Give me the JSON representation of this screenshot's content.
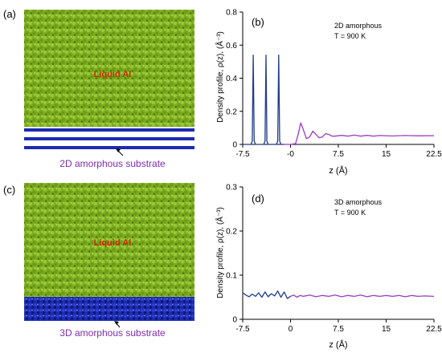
{
  "panels": {
    "a": {
      "label": "(a)",
      "liquid_label": "Liquid Al",
      "substrate_label": "2D amorphous substrate"
    },
    "c": {
      "label": "(c)",
      "liquid_label": "Liquid Al",
      "substrate_label": "3D amorphous substrate"
    }
  },
  "colors": {
    "liquid": "#7cae1f",
    "liquid_dark": "#4e7d0e",
    "substrate": "#1c2bb0",
    "substrate_dark": "#0b1570",
    "label_text": "#d22a0a",
    "substrate_caption": "#7d2bb0",
    "curve_substrate": "#1f3a8a",
    "curve_liquid": "#9a3cc2"
  },
  "chart_data": [
    {
      "type": "line",
      "panel_label": "(b)",
      "annotation": [
        "2D amorphous",
        "T = 900 K"
      ],
      "xlabel": "z (Å)",
      "ylabel": "Density profile, ρ(z), (Å⁻³)",
      "xlim": [
        -7.5,
        22.5
      ],
      "ylim": [
        0,
        0.8
      ],
      "xticks": [
        "-7.5",
        "-0",
        "7.5",
        "15",
        "22.5"
      ],
      "xtick_values": [
        -7.5,
        0,
        7.5,
        15,
        22.5
      ],
      "yticks": [
        "0",
        "0.2",
        "0.4",
        "0.6",
        "0.8"
      ],
      "ytick_values": [
        0,
        0.2,
        0.4,
        0.6,
        0.8
      ],
      "series": [
        {
          "x": [
            -7.5,
            -6.2,
            -6.0,
            -5.85,
            -5.7,
            -5.5,
            -4.2,
            -4.0,
            -3.85,
            -3.7,
            -3.5,
            -2.2,
            -2.0,
            -1.85,
            -1.7,
            -1.5,
            -1.0
          ],
          "y": [
            0,
            0,
            0.02,
            0.54,
            0.02,
            0,
            0,
            0.02,
            0.54,
            0.02,
            0,
            0,
            0.02,
            0.54,
            0.02,
            0,
            0
          ]
        },
        {
          "x": [
            -1.0,
            0,
            0.8,
            1.2,
            1.6,
            2.0,
            2.5,
            3.0,
            3.5,
            4.0,
            4.5,
            5.0,
            5.5,
            6.0,
            6.5,
            7.0,
            8.0,
            9.0,
            10.0,
            11.0,
            12.0,
            13.0,
            14.0,
            16.0,
            18.0,
            20.0,
            22.5
          ],
          "y": [
            0,
            0,
            0.005,
            0.06,
            0.13,
            0.09,
            0.035,
            0.045,
            0.08,
            0.06,
            0.04,
            0.045,
            0.065,
            0.06,
            0.05,
            0.05,
            0.055,
            0.05,
            0.056,
            0.05,
            0.055,
            0.05,
            0.054,
            0.051,
            0.054,
            0.052,
            0.053
          ]
        }
      ]
    },
    {
      "type": "line",
      "panel_label": "(d)",
      "annotation": [
        "3D amorphous",
        "T = 900 K"
      ],
      "xlabel": "z (Å)",
      "ylabel": "Density profile, ρ(z), (Å⁻³)",
      "xlim": [
        -7.5,
        22.5
      ],
      "ylim": [
        0,
        0.3
      ],
      "xticks": [
        "-7.5",
        "0",
        "7.5",
        "15",
        "22.5"
      ],
      "xtick_values": [
        -7.5,
        0,
        7.5,
        15,
        22.5
      ],
      "yticks": [
        "0",
        "0.1",
        "0.2",
        "0.3"
      ],
      "ytick_values": [
        0,
        0.1,
        0.2,
        0.3
      ],
      "series": [
        {
          "x": [
            -7.5,
            -7.0,
            -6.5,
            -6.0,
            -5.5,
            -5.0,
            -4.5,
            -4.0,
            -3.5,
            -3.0,
            -2.5,
            -2.0,
            -1.5,
            -1.0,
            -0.5,
            0
          ],
          "y": [
            0.06,
            0.055,
            0.051,
            0.057,
            0.052,
            0.06,
            0.05,
            0.062,
            0.051,
            0.058,
            0.053,
            0.064,
            0.05,
            0.062,
            0.047,
            0.052
          ]
        },
        {
          "x": [
            0,
            0.5,
            1.0,
            1.5,
            2.0,
            3.0,
            4.0,
            5.0,
            6.0,
            7.0,
            8.0,
            9.0,
            10.0,
            11.0,
            12.0,
            13.0,
            14.0,
            15.0,
            16.0,
            17.0,
            18.0,
            19.0,
            20.0,
            21.0,
            22.5
          ],
          "y": [
            0.052,
            0.055,
            0.05,
            0.054,
            0.052,
            0.055,
            0.051,
            0.054,
            0.052,
            0.055,
            0.051,
            0.054,
            0.052,
            0.055,
            0.051,
            0.054,
            0.052,
            0.054,
            0.052,
            0.054,
            0.051,
            0.054,
            0.052,
            0.053,
            0.052
          ]
        }
      ]
    }
  ]
}
